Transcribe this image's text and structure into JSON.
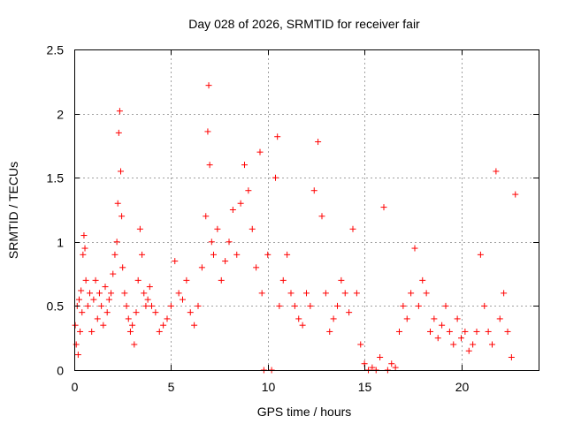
{
  "chart_data": {
    "type": "scatter",
    "title": "Day 028 of 2026, SRMTID for receiver fair",
    "xlabel": "GPS time / hours",
    "ylabel": "SRMTID / TECUs",
    "xlim": [
      0,
      24
    ],
    "ylim": [
      0,
      2.5
    ],
    "x_ticks": [
      0,
      5,
      10,
      15,
      20
    ],
    "x_tick_labels": [
      "0",
      "5",
      "10",
      "15",
      "20"
    ],
    "y_ticks": [
      0,
      0.5,
      1,
      1.5,
      2,
      2.5
    ],
    "y_tick_labels": [
      "0",
      "0.5",
      "1",
      "1.5",
      "2",
      "2.5"
    ],
    "grid": true,
    "marker": "+",
    "color": "#ff0000",
    "series": [
      {
        "name": "SRMTID",
        "points": [
          [
            0.05,
            0.35
          ],
          [
            0.1,
            0.2
          ],
          [
            0.15,
            0.5
          ],
          [
            0.2,
            0.12
          ],
          [
            0.25,
            0.55
          ],
          [
            0.3,
            0.3
          ],
          [
            0.35,
            0.62
          ],
          [
            0.4,
            0.45
          ],
          [
            0.45,
            0.9
          ],
          [
            0.5,
            1.05
          ],
          [
            0.55,
            0.95
          ],
          [
            0.6,
            0.7
          ],
          [
            0.7,
            0.5
          ],
          [
            0.8,
            0.6
          ],
          [
            0.9,
            0.3
          ],
          [
            1.0,
            0.55
          ],
          [
            1.1,
            0.7
          ],
          [
            1.2,
            0.4
          ],
          [
            1.3,
            0.6
          ],
          [
            1.4,
            0.5
          ],
          [
            1.5,
            0.35
          ],
          [
            1.6,
            0.65
          ],
          [
            1.7,
            0.45
          ],
          [
            1.8,
            0.55
          ],
          [
            1.9,
            0.6
          ],
          [
            2.0,
            0.75
          ],
          [
            2.1,
            0.9
          ],
          [
            2.2,
            1.0
          ],
          [
            2.25,
            1.3
          ],
          [
            2.3,
            1.85
          ],
          [
            2.35,
            2.02
          ],
          [
            2.4,
            1.55
          ],
          [
            2.45,
            1.2
          ],
          [
            2.5,
            0.8
          ],
          [
            2.6,
            0.6
          ],
          [
            2.7,
            0.5
          ],
          [
            2.8,
            0.4
          ],
          [
            2.9,
            0.3
          ],
          [
            3.0,
            0.35
          ],
          [
            3.1,
            0.2
          ],
          [
            3.2,
            0.45
          ],
          [
            3.3,
            0.7
          ],
          [
            3.4,
            1.1
          ],
          [
            3.5,
            0.9
          ],
          [
            3.6,
            0.6
          ],
          [
            3.7,
            0.5
          ],
          [
            3.8,
            0.55
          ],
          [
            3.9,
            0.65
          ],
          [
            4.0,
            0.5
          ],
          [
            4.2,
            0.45
          ],
          [
            4.4,
            0.3
          ],
          [
            4.6,
            0.35
          ],
          [
            4.8,
            0.4
          ],
          [
            5.0,
            0.5
          ],
          [
            5.2,
            0.85
          ],
          [
            5.4,
            0.6
          ],
          [
            5.6,
            0.55
          ],
          [
            5.8,
            0.7
          ],
          [
            6.0,
            0.45
          ],
          [
            6.2,
            0.35
          ],
          [
            6.4,
            0.5
          ],
          [
            6.6,
            0.8
          ],
          [
            6.8,
            1.2
          ],
          [
            6.9,
            1.86
          ],
          [
            6.95,
            2.22
          ],
          [
            7.0,
            1.6
          ],
          [
            7.1,
            1.0
          ],
          [
            7.2,
            0.9
          ],
          [
            7.4,
            1.1
          ],
          [
            7.6,
            0.7
          ],
          [
            7.8,
            0.85
          ],
          [
            8.0,
            1.0
          ],
          [
            8.2,
            1.25
          ],
          [
            8.4,
            0.9
          ],
          [
            8.6,
            1.3
          ],
          [
            8.8,
            1.6
          ],
          [
            9.0,
            1.4
          ],
          [
            9.2,
            1.1
          ],
          [
            9.4,
            0.8
          ],
          [
            9.6,
            1.7
          ],
          [
            9.7,
            0.6
          ],
          [
            9.8,
            0.0
          ],
          [
            10.0,
            0.9
          ],
          [
            10.2,
            0.0
          ],
          [
            10.4,
            1.5
          ],
          [
            10.5,
            1.82
          ],
          [
            10.6,
            0.5
          ],
          [
            10.8,
            0.7
          ],
          [
            11.0,
            0.9
          ],
          [
            11.2,
            0.6
          ],
          [
            11.4,
            0.5
          ],
          [
            11.6,
            0.4
          ],
          [
            11.8,
            0.35
          ],
          [
            12.0,
            0.6
          ],
          [
            12.2,
            0.5
          ],
          [
            12.4,
            1.4
          ],
          [
            12.6,
            1.78
          ],
          [
            12.8,
            1.2
          ],
          [
            13.0,
            0.6
          ],
          [
            13.2,
            0.3
          ],
          [
            13.4,
            0.4
          ],
          [
            13.6,
            0.5
          ],
          [
            13.8,
            0.7
          ],
          [
            14.0,
            0.6
          ],
          [
            14.2,
            0.45
          ],
          [
            14.4,
            1.1
          ],
          [
            14.6,
            0.6
          ],
          [
            14.8,
            0.2
          ],
          [
            15.0,
            0.05
          ],
          [
            15.2,
            0.0
          ],
          [
            15.4,
            0.02
          ],
          [
            15.6,
            0.0
          ],
          [
            15.8,
            0.1
          ],
          [
            16.0,
            1.27
          ],
          [
            16.2,
            0.0
          ],
          [
            16.4,
            0.05
          ],
          [
            16.6,
            0.02
          ],
          [
            16.8,
            0.3
          ],
          [
            17.0,
            0.5
          ],
          [
            17.2,
            0.4
          ],
          [
            17.4,
            0.6
          ],
          [
            17.6,
            0.95
          ],
          [
            17.8,
            0.5
          ],
          [
            18.0,
            0.7
          ],
          [
            18.2,
            0.6
          ],
          [
            18.4,
            0.3
          ],
          [
            18.6,
            0.4
          ],
          [
            18.8,
            0.25
          ],
          [
            19.0,
            0.35
          ],
          [
            19.2,
            0.5
          ],
          [
            19.4,
            0.3
          ],
          [
            19.6,
            0.2
          ],
          [
            19.8,
            0.4
          ],
          [
            20.0,
            0.25
          ],
          [
            20.2,
            0.3
          ],
          [
            20.4,
            0.15
          ],
          [
            20.6,
            0.2
          ],
          [
            20.8,
            0.3
          ],
          [
            21.0,
            0.9
          ],
          [
            21.2,
            0.5
          ],
          [
            21.4,
            0.3
          ],
          [
            21.6,
            0.2
          ],
          [
            21.8,
            1.55
          ],
          [
            22.0,
            0.4
          ],
          [
            22.2,
            0.6
          ],
          [
            22.4,
            0.3
          ],
          [
            22.6,
            0.1
          ],
          [
            22.8,
            1.37
          ]
        ]
      }
    ]
  }
}
